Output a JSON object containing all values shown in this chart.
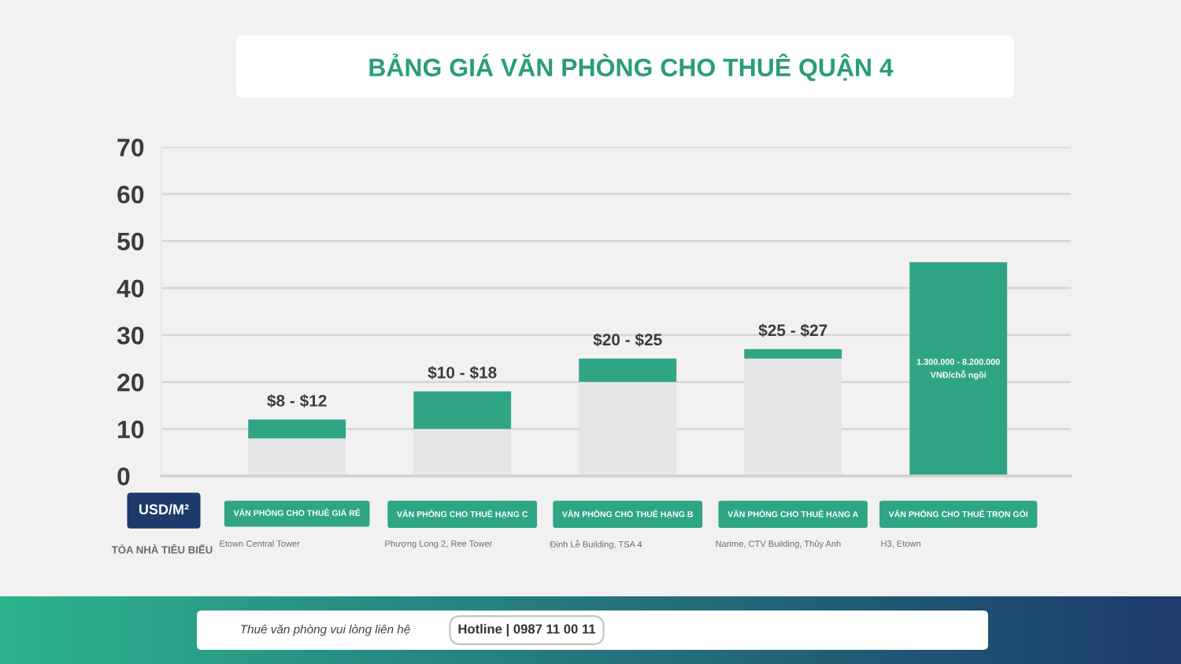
{
  "chart_data": {
    "type": "bar",
    "title": "BẢNG GIÁ VĂN PHÒNG CHO THUÊ QUẬN 4",
    "ylabel": "USD/M²",
    "categories": [
      "VĂN PHÒNG CHO THUÊ GIÁ RẺ",
      "VĂN PHÒNG CHO THUÊ HẠNG C",
      "VĂN PHÒNG CHO THUÊ HẠNG B",
      "VĂN PHÒNG CHO THUÊ HẠNG A",
      "VĂN PHÒNG CHO THUÊ TRỌN GÓI"
    ],
    "stacked": true,
    "series": [
      {
        "color": "#e4e5e7",
        "values": [
          8,
          10,
          20,
          25,
          null
        ]
      },
      {
        "color": "#2fa586",
        "values": [
          4,
          8,
          5,
          2,
          45.5
        ]
      }
    ],
    "ylim": [
      0,
      70
    ],
    "yticks": [
      0,
      10,
      20,
      30,
      40,
      50,
      60,
      70
    ],
    "grid": "y",
    "annotations": [
      {
        "text": "$8 - $12",
        "x": "VĂN PHÒNG CHO THUÊ GIÁ RẺ",
        "y": 12
      },
      {
        "text": "$10 - $18",
        "x": "VĂN PHÒNG CHO THUÊ HẠNG C",
        "y": 18
      },
      {
        "text": "$20 - $25",
        "x": "VĂN PHÒNG CHO THUÊ HẠNG B",
        "y": 25
      },
      {
        "text": "$25 - $27",
        "x": "VĂN PHÒNG CHO THUÊ HẠNG A",
        "y": 27
      },
      "TÒA NHÀ TIÊU BIỂU",
      "Etown Central Tower",
      "Phượng Long 2, Ree Tower",
      "Đinh Lễ Building, TSA 4",
      "Narime, CTV Building, Thủy Anh",
      "H3, Etown",
      "1.300.000 - 8.200.000\nVNĐ/chỗ ngồi",
      "Thuê văn phòng vui lòng liên hệ",
      "Hotline | 0987 11 00 11"
    ]
  }
}
